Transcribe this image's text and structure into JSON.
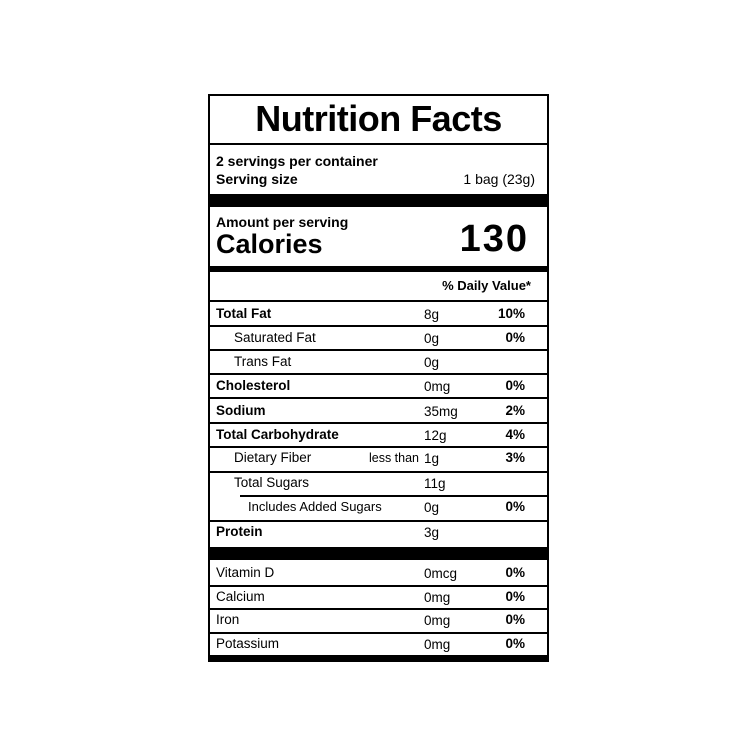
{
  "title": "Nutrition Facts",
  "servings_per_container": "2 servings per container",
  "serving_size_label": "Serving size",
  "serving_size_value": "1 bag (23g)",
  "amount_per_serving": "Amount per serving",
  "calories_label": "Calories",
  "calories_value": "130",
  "daily_value_header": "% Daily Value*",
  "nutrients": [
    {
      "name": "Total Fat",
      "amount": "8g",
      "dv": "10%"
    },
    {
      "name": "Saturated Fat",
      "amount": "0g",
      "dv": "0%"
    },
    {
      "name": "Trans Fat",
      "amount": "0g",
      "dv": ""
    },
    {
      "name": "Cholesterol",
      "amount": "0mg",
      "dv": "0%"
    },
    {
      "name": "Sodium",
      "amount": "35mg",
      "dv": "2%"
    },
    {
      "name": "Total Carbohydrate",
      "amount": "12g",
      "dv": "4%"
    },
    {
      "name": "Dietary Fiber",
      "qualifier": "less than",
      "amount": "1g",
      "dv": "3%"
    },
    {
      "name": "Total Sugars",
      "amount": "11g",
      "dv": ""
    },
    {
      "name": "Includes Added Sugars",
      "amount": "0g",
      "dv": "0%"
    },
    {
      "name": "Protein",
      "amount": "3g",
      "dv": ""
    }
  ],
  "vitamins": [
    {
      "name": "Vitamin D",
      "amount": "0mcg",
      "dv": "0%"
    },
    {
      "name": "Calcium",
      "amount": "0mg",
      "dv": "0%"
    },
    {
      "name": "Iron",
      "amount": "0mg",
      "dv": "0%"
    },
    {
      "name": "Potassium",
      "amount": "0mg",
      "dv": "0%"
    }
  ]
}
